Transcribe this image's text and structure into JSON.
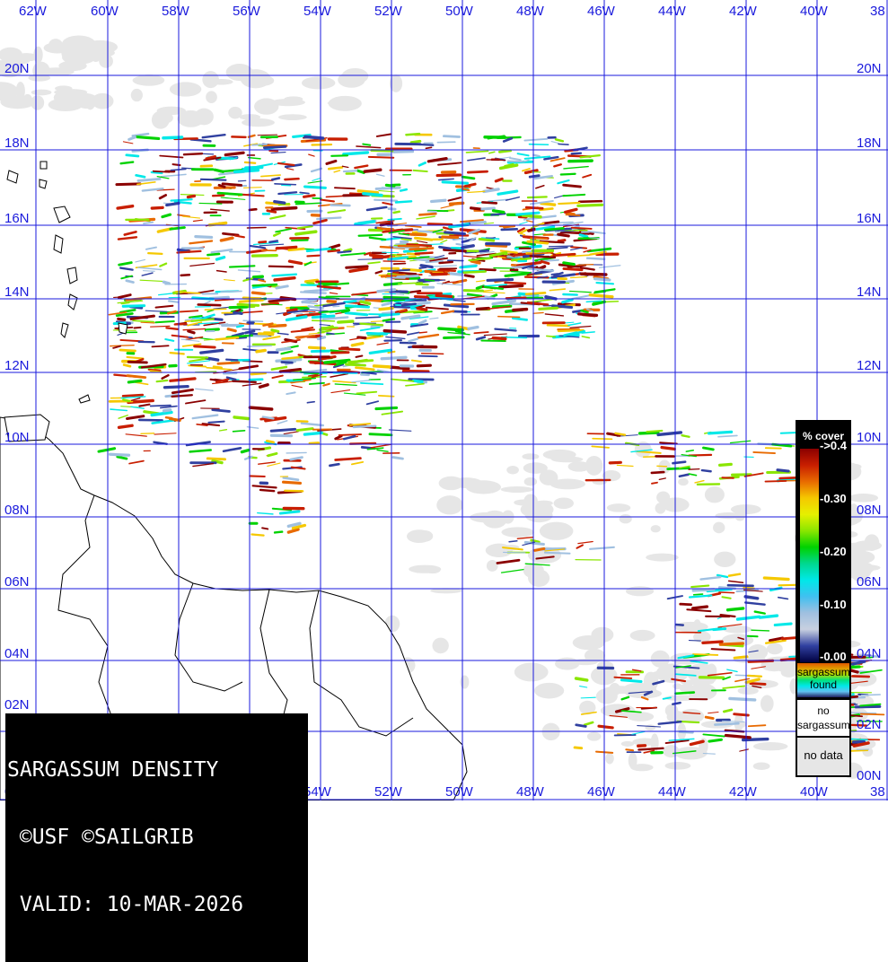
{
  "title_block": {
    "line1": "SARGASSUM DENSITY",
    "line2": " ©USF ©SAILGRIB",
    "line3": " VALID: 10-MAR-2026"
  },
  "longitude_labels": [
    "62W",
    "60W",
    "58W",
    "56W",
    "54W",
    "52W",
    "50W",
    "48W",
    "46W",
    "44W",
    "42W",
    "40W",
    "38"
  ],
  "latitude_labels": [
    "20N",
    "18N",
    "16N",
    "14N",
    "12N",
    "10N",
    "08N",
    "06N",
    "04N",
    "02N",
    "00N"
  ],
  "legend": {
    "header": "% cover",
    "ticks": [
      "->0.4",
      "-0.30",
      "-0.20",
      "-0.10",
      "-0.00"
    ],
    "found_line1": "sargassum",
    "found_line2": "found",
    "no_sarg_line1": "no",
    "no_sarg_line2": "sargassum",
    "no_data": "no data"
  },
  "colors": {
    "grid": "#1a1adc",
    "no_data": "#e6e6e6",
    "land": "#ffffff",
    "coast": "#000000",
    "density_scale": [
      "#8a0000",
      "#c81e00",
      "#e86a00",
      "#f5c800",
      "#8ae600",
      "#00d200",
      "#00e8e8",
      "#a0c0e0",
      "#3040a0"
    ]
  }
}
